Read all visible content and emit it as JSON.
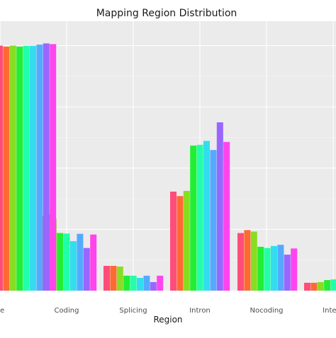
{
  "chart_data": {
    "type": "bar",
    "title": "Mapping Region Distribution",
    "xlabel": "Region",
    "ylabel": "",
    "categories": [
      "ne",
      "Coding",
      "Splicing",
      "Intron",
      "Nocoding",
      "Interg"
    ],
    "ylim": [
      0,
      100
    ],
    "grid": true,
    "legend": "none",
    "series": [
      {
        "color": "#ff4d7a",
        "values": [
          100,
          30.6,
          10.1,
          40.4,
          23.5,
          3.2
        ]
      },
      {
        "color": "#ff6a33",
        "values": [
          99.6,
          31.2,
          10.1,
          38.6,
          24.7,
          3.2
        ]
      },
      {
        "color": "#88dd22",
        "values": [
          100,
          29.2,
          9.8,
          40.7,
          24.1,
          3.5
        ]
      },
      {
        "color": "#22ee33",
        "values": [
          99.6,
          23.5,
          6.1,
          59.2,
          17.9,
          4.3
        ]
      },
      {
        "color": "#22ffaa",
        "values": [
          99.9,
          23.3,
          6.1,
          59.5,
          17.4,
          4.6
        ]
      },
      {
        "color": "#33ddee",
        "values": [
          99.9,
          20.2,
          5.2,
          61.1,
          18.2,
          null
        ]
      },
      {
        "color": "#55aaff",
        "values": [
          100.4,
          23.2,
          6.1,
          57.4,
          18.7,
          null
        ]
      },
      {
        "color": "#9966ff",
        "values": [
          100.9,
          17.4,
          3.5,
          68.7,
          14.7,
          null
        ]
      },
      {
        "color": "#ff44ee",
        "values": [
          100.6,
          22.9,
          6.1,
          60.7,
          17.2,
          null
        ]
      }
    ]
  }
}
